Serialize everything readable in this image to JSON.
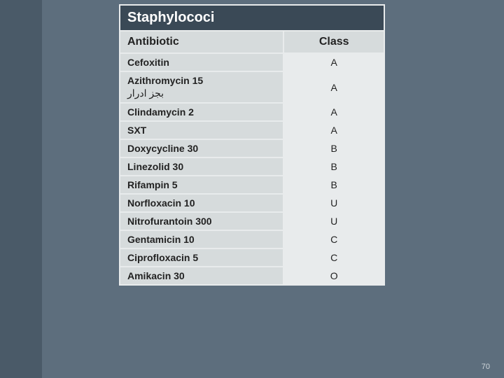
{
  "colors": {
    "left_bar": "#4a5a68",
    "main_bg": "#5d6e7d",
    "title_bg": "#3a4956",
    "title_fg": "#ffffff",
    "header_bg": "#d6dbdc",
    "row_alt_bg": "#e8ebec",
    "border": "#e8ebec",
    "text": "#222222",
    "pagenum": "#cfd6da"
  },
  "title": "Staphylococi",
  "headers": {
    "col1": "Antibiotic",
    "col2": "Class"
  },
  "rows": [
    {
      "antibiotic": "Cefoxitin",
      "sub": "",
      "class": "A"
    },
    {
      "antibiotic": "Azithromycin 15",
      "sub": "بجز ادرار",
      "class": "A"
    },
    {
      "antibiotic": "Clindamycin 2",
      "sub": "",
      "class": "A"
    },
    {
      "antibiotic": "SXT",
      "sub": "",
      "class": "A"
    },
    {
      "antibiotic": "Doxycycline 30",
      "sub": "",
      "class": "B"
    },
    {
      "antibiotic": "Linezolid 30",
      "sub": "",
      "class": "B"
    },
    {
      "antibiotic": "Rifampin 5",
      "sub": "",
      "class": "B"
    },
    {
      "antibiotic": "Norfloxacin 10",
      "sub": "",
      "class": "U"
    },
    {
      "antibiotic": "Nitrofurantoin 300",
      "sub": "",
      "class": "U"
    },
    {
      "antibiotic": "Gentamicin  10",
      "sub": "",
      "class": "C"
    },
    {
      "antibiotic": "Ciprofloxacin 5",
      "sub": "",
      "class": "C"
    },
    {
      "antibiotic": "Amikacin 30",
      "sub": "",
      "class": "O"
    }
  ],
  "page_number": "70"
}
